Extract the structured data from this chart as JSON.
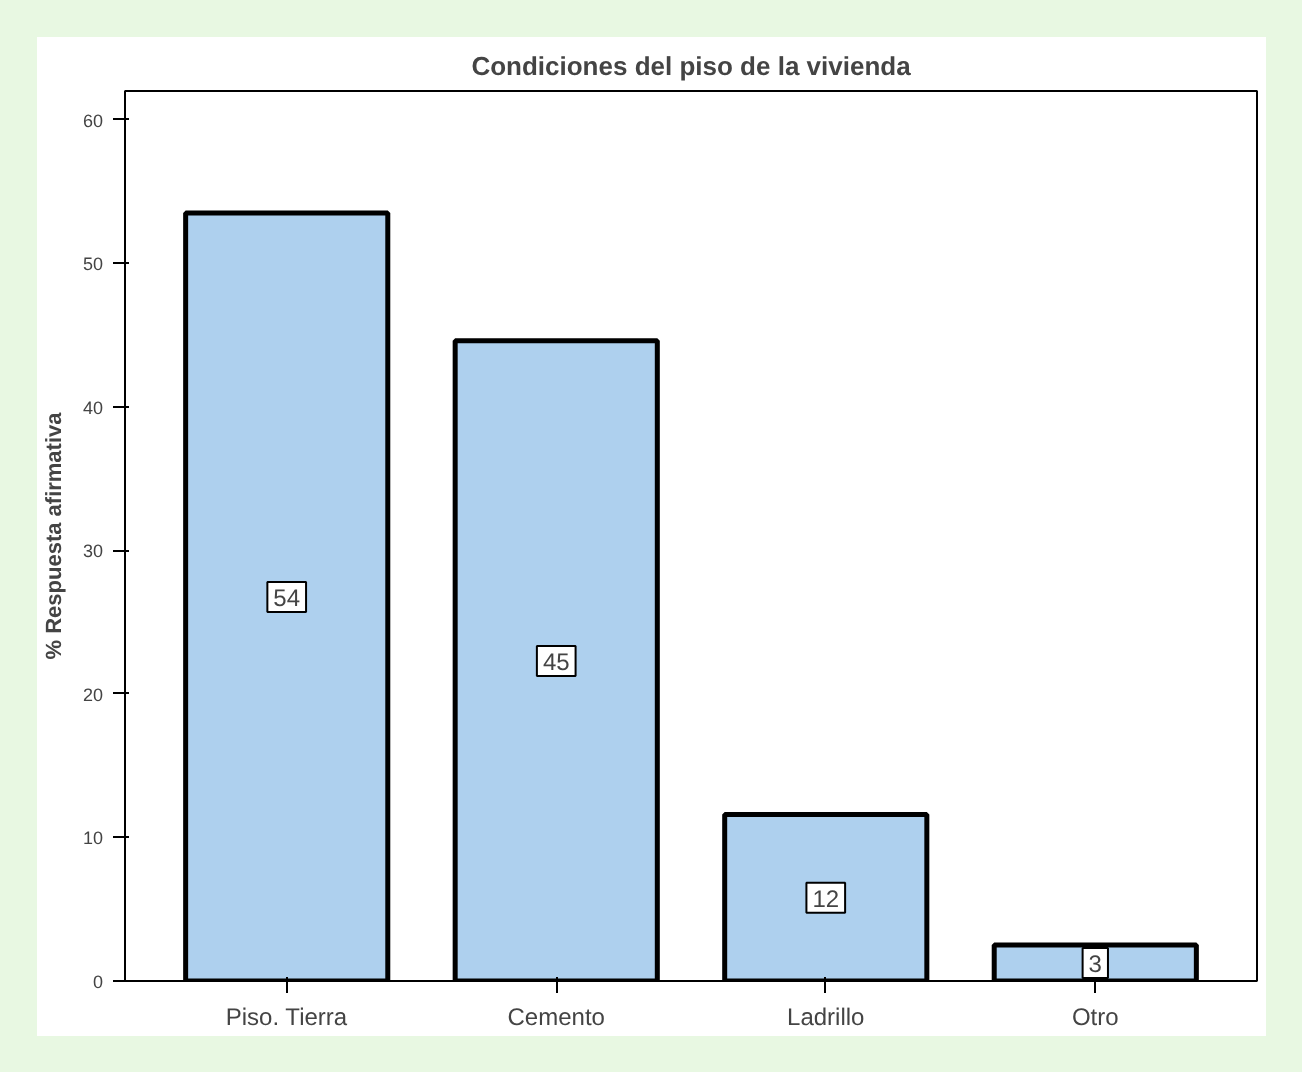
{
  "chart_data": {
    "type": "bar",
    "title": "Condiciones del piso de la vivienda",
    "ylabel": "% Respuesta afirmativa",
    "categories": [
      "Piso. Tierra",
      "Cemento",
      "Ladrillo",
      "Otro"
    ],
    "values": [
      53.5,
      44.6,
      11.6,
      2.5
    ],
    "value_labels": [
      "54",
      "45",
      "12",
      "3"
    ],
    "color": "#aed0ee",
    "ylim": [
      0,
      62
    ],
    "yticks": [
      0,
      10,
      20,
      30,
      40,
      50,
      60
    ],
    "grid": false
  }
}
